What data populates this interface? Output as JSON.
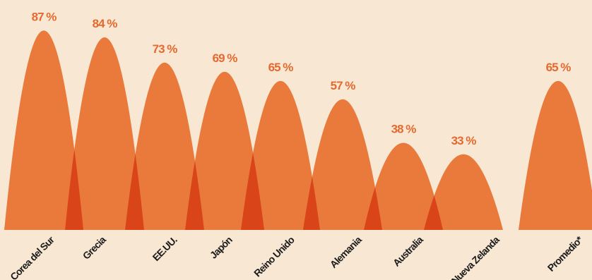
{
  "chart_data": {
    "type": "area",
    "categories": [
      "Corea del Sur",
      "Grecia",
      "EE.UU.",
      "Japón",
      "Reino Unido",
      "Alemania",
      "Australia",
      "Nueva Zelanda",
      "Promedio*"
    ],
    "values": [
      87,
      84,
      73,
      69,
      65,
      57,
      38,
      33,
      65
    ],
    "value_labels": [
      "87 %",
      "84 %",
      "73 %",
      "69 %",
      "65 %",
      "57 %",
      "38 %",
      "33 %",
      "65 %"
    ],
    "ylim": [
      0,
      100
    ],
    "grid": false,
    "colors": {
      "fill": "#e97a3c",
      "overlap": "#d94418",
      "text_value": "#e5692f",
      "text_category": "#1a1a1a",
      "background": "#f8e8d3"
    }
  }
}
